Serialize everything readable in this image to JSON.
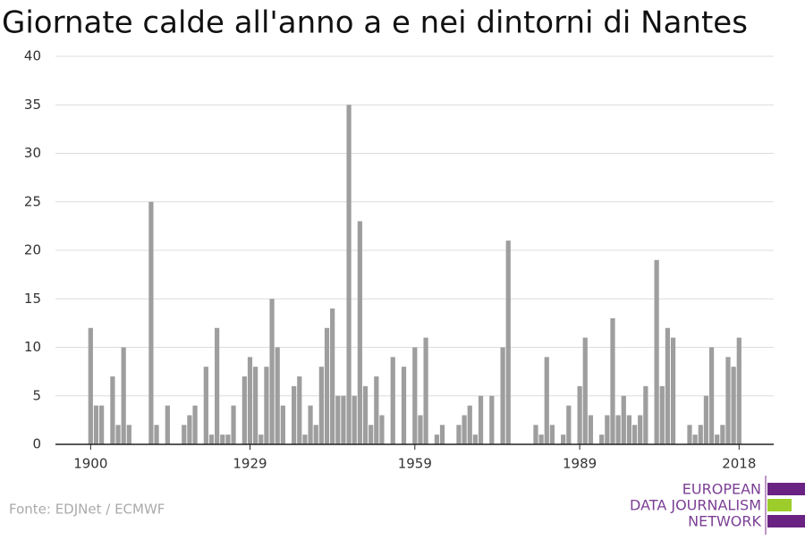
{
  "chart_data": {
    "type": "bar",
    "title": "Giornate calde all'anno a e nei dintorni di Nantes",
    "x": [
      1900,
      1901,
      1902,
      1903,
      1904,
      1905,
      1906,
      1907,
      1908,
      1909,
      1910,
      1911,
      1912,
      1913,
      1914,
      1915,
      1916,
      1917,
      1918,
      1919,
      1920,
      1921,
      1922,
      1923,
      1924,
      1925,
      1926,
      1927,
      1928,
      1929,
      1930,
      1931,
      1932,
      1933,
      1934,
      1935,
      1936,
      1937,
      1938,
      1939,
      1940,
      1941,
      1942,
      1943,
      1944,
      1945,
      1946,
      1947,
      1948,
      1949,
      1950,
      1951,
      1952,
      1953,
      1954,
      1955,
      1956,
      1957,
      1958,
      1959,
      1960,
      1961,
      1962,
      1963,
      1964,
      1965,
      1966,
      1967,
      1968,
      1969,
      1970,
      1971,
      1972,
      1973,
      1974,
      1975,
      1976,
      1977,
      1978,
      1979,
      1980,
      1981,
      1982,
      1983,
      1984,
      1985,
      1986,
      1987,
      1988,
      1989,
      1990,
      1991,
      1992,
      1993,
      1994,
      1995,
      1996,
      1997,
      1998,
      1999,
      2000,
      2001,
      2002,
      2003,
      2004,
      2005,
      2006,
      2007,
      2008,
      2009,
      2010,
      2011,
      2012,
      2013,
      2014,
      2015,
      2016,
      2017,
      2018
    ],
    "values": [
      12,
      4,
      4,
      0,
      7,
      2,
      10,
      2,
      0,
      0,
      0,
      25,
      2,
      0,
      4,
      0,
      0,
      2,
      3,
      4,
      0,
      8,
      1,
      12,
      1,
      1,
      4,
      0,
      7,
      9,
      8,
      1,
      8,
      15,
      10,
      4,
      0,
      6,
      7,
      1,
      4,
      2,
      8,
      12,
      14,
      5,
      5,
      35,
      5,
      23,
      6,
      2,
      7,
      3,
      0,
      9,
      0,
      8,
      0,
      10,
      3,
      11,
      0,
      1,
      2,
      0,
      0,
      2,
      3,
      4,
      1,
      5,
      0,
      5,
      0,
      10,
      21,
      0,
      0,
      0,
      0,
      2,
      1,
      9,
      2,
      0,
      1,
      4,
      0,
      6,
      11,
      3,
      0,
      1,
      3,
      13,
      3,
      5,
      3,
      2,
      3,
      6,
      0,
      19,
      6,
      12,
      11,
      0,
      0,
      2,
      1,
      2,
      5,
      10,
      1,
      2,
      9,
      8,
      11
    ],
    "color": "#9e9e9e",
    "xlim": [
      1893.6,
      2024.3
    ],
    "xticks": [
      1900,
      1929,
      1959,
      1989,
      2018
    ],
    "ylim": [
      0,
      40
    ],
    "yticks": [
      0,
      5,
      10,
      15,
      20,
      25,
      30,
      35,
      40
    ],
    "grid": true,
    "source": "Fonte: EDJNet / ECMWF",
    "logo": [
      "EUROPEAN",
      "DATA JOURNALISM",
      "NETWORK"
    ]
  }
}
